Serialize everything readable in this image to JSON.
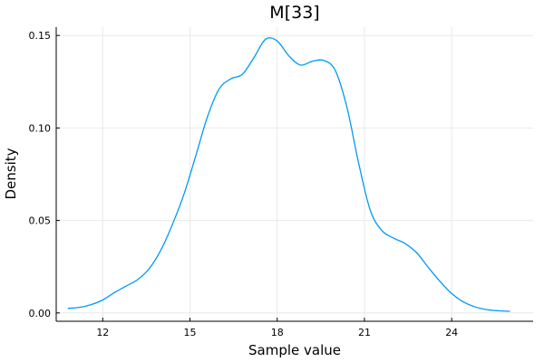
{
  "chart_data": {
    "type": "line",
    "title": "M[33]",
    "xlabel": "Sample value",
    "ylabel": "Density",
    "xlim": [
      10.4,
      26.8
    ],
    "ylim": [
      -0.0045,
      0.1545
    ],
    "x_ticks": [
      12,
      15,
      18,
      21,
      24
    ],
    "y_ticks": [
      0.0,
      0.05,
      0.1,
      0.15
    ],
    "grid": true,
    "legend": "none",
    "series": [
      {
        "color": "#009AFA",
        "x": [
          10.8,
          11.2,
          11.6,
          12.0,
          12.4,
          12.8,
          13.2,
          13.6,
          14.0,
          14.4,
          14.8,
          15.2,
          15.6,
          16.0,
          16.4,
          16.8,
          17.2,
          17.6,
          18.0,
          18.4,
          18.8,
          19.2,
          19.6,
          20.0,
          20.4,
          20.8,
          21.2,
          21.6,
          22.0,
          22.4,
          22.8,
          23.2,
          23.6,
          24.0,
          24.4,
          24.8,
          25.2,
          25.6,
          26.0
        ],
        "y": [
          0.0025,
          0.003,
          0.0045,
          0.007,
          0.011,
          0.0145,
          0.018,
          0.024,
          0.034,
          0.048,
          0.0645,
          0.085,
          0.106,
          0.121,
          0.1265,
          0.129,
          0.138,
          0.148,
          0.147,
          0.139,
          0.134,
          0.136,
          0.1365,
          0.131,
          0.111,
          0.081,
          0.0555,
          0.0445,
          0.0405,
          0.0375,
          0.0325,
          0.0245,
          0.017,
          0.0105,
          0.006,
          0.0033,
          0.0018,
          0.0012,
          0.0009
        ]
      }
    ]
  }
}
